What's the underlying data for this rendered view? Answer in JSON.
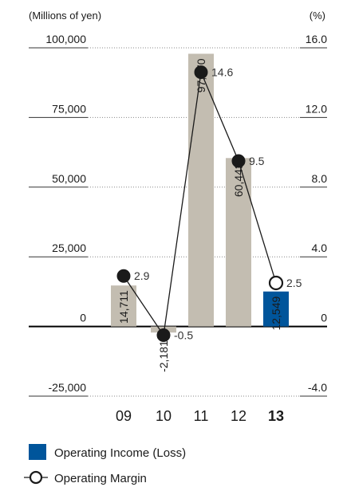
{
  "chart_data": {
    "type": "bar",
    "left_unit": "(Millions of yen)",
    "right_unit": "(%)",
    "categories": [
      "09",
      "10",
      "11",
      "12",
      "13"
    ],
    "bold_category": "13",
    "left_axis": {
      "ticks": [
        100000,
        75000,
        50000,
        25000,
        0,
        -25000
      ],
      "tick_labels": [
        "100,000",
        "75,000",
        "50,000",
        "25,000",
        "0",
        "-25,000"
      ],
      "ylim": [
        -25000,
        100000
      ]
    },
    "right_axis": {
      "ticks": [
        16.0,
        12.0,
        8.0,
        4.0,
        0,
        -4.0
      ],
      "tick_labels": [
        "16.0",
        "12.0",
        "8.0",
        "4.0",
        "0",
        "-4.0"
      ],
      "ylim": [
        -4.0,
        16.0
      ]
    },
    "series": [
      {
        "name": "Operating Income (Loss)",
        "kind": "bar",
        "values": [
          14711,
          -2181,
          97870,
          60443,
          12549
        ],
        "labels": [
          "14,711",
          "-2,181",
          "97,870",
          "60,443",
          "12,549"
        ],
        "colors": [
          "#c3bdb1",
          "#c3bdb1",
          "#c3bdb1",
          "#c3bdb1",
          "#00559b"
        ]
      },
      {
        "name": "Operating Margin",
        "kind": "line",
        "values": [
          2.9,
          -0.5,
          14.6,
          9.5,
          2.5
        ],
        "labels": [
          "2.9",
          "-0.5",
          "14.6",
          "9.5",
          "2.5"
        ]
      }
    ],
    "legend": [
      {
        "name": "Operating Income (Loss)",
        "symbol": "square",
        "color": "#00559b"
      },
      {
        "name": "Operating Margin",
        "symbol": "hollow-circle-line",
        "color": "#1a1a1a"
      }
    ]
  }
}
